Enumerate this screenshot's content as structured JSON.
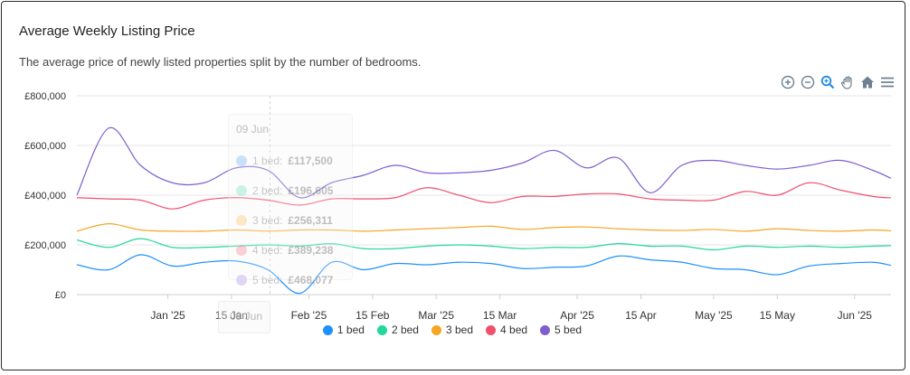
{
  "header": {
    "title": "Average Weekly Listing Price",
    "subtitle": "The average price of newly listed properties split by the number of bedrooms."
  },
  "toolbar": {
    "icons": [
      "zoom-in-icon",
      "zoom-out-icon",
      "selection-zoom-icon",
      "pan-hand-icon",
      "home-reset-icon",
      "menu-icon"
    ]
  },
  "tooltip": {
    "title": "09 Jun",
    "rows": [
      {
        "label": "1 bed:",
        "value": "£117,500",
        "color": "#1e90ff"
      },
      {
        "label": "2 bed:",
        "value": "£196,605",
        "color": "#22d89a"
      },
      {
        "label": "3 bed:",
        "value": "£256,311",
        "color": "#f5a623"
      },
      {
        "label": "4 bed:",
        "value": "£389,238",
        "color": "#f0506e"
      },
      {
        "label": "5 bed:",
        "value": "£468,077",
        "color": "#7e5fd0"
      }
    ],
    "x_label": "09 Jun"
  },
  "chart_data": {
    "type": "line",
    "title": "Average Weekly Listing Price",
    "ylim": [
      0,
      800000
    ],
    "yticks": [
      "£0",
      "£200,000",
      "£400,000",
      "£600,000",
      "£800,000"
    ],
    "ytick_values": [
      0,
      200000,
      400000,
      600000,
      800000
    ],
    "xticks": [
      "Jan '25",
      "15 Jan",
      "Feb '25",
      "15 Feb",
      "Mar '25",
      "15 Mar",
      "Apr '25",
      "15 Apr",
      "May '25",
      "15 May",
      "Jun '25"
    ],
    "xtick_dates": [
      "2025-01-01",
      "2025-01-15",
      "2025-02-01",
      "2025-02-15",
      "2025-03-01",
      "2025-03-15",
      "2025-04-01",
      "2025-04-15",
      "2025-05-01",
      "2025-05-15",
      "2025-06-01"
    ],
    "x": [
      "2024-12-12",
      "2024-12-19",
      "2024-12-26",
      "2025-01-02",
      "2025-01-09",
      "2025-01-16",
      "2025-01-23",
      "2025-01-30",
      "2025-02-06",
      "2025-02-13",
      "2025-02-20",
      "2025-02-27",
      "2025-03-06",
      "2025-03-13",
      "2025-03-20",
      "2025-03-27",
      "2025-04-03",
      "2025-04-10",
      "2025-04-17",
      "2025-04-24",
      "2025-05-01",
      "2025-05-08",
      "2025-05-15",
      "2025-05-22",
      "2025-05-29",
      "2025-06-05",
      "2025-06-09"
    ],
    "series": [
      {
        "name": "1 bed",
        "color": "#1e90ff",
        "values": [
          120000,
          100000,
          160000,
          115000,
          130000,
          135000,
          100000,
          5000,
          130000,
          100000,
          125000,
          120000,
          130000,
          125000,
          105000,
          110000,
          115000,
          155000,
          140000,
          130000,
          105000,
          100000,
          80000,
          115000,
          125000,
          130000,
          117500
        ]
      },
      {
        "name": "2 bed",
        "color": "#22d89a",
        "values": [
          220000,
          190000,
          225000,
          190000,
          190000,
          195000,
          200000,
          195000,
          205000,
          185000,
          185000,
          195000,
          200000,
          195000,
          185000,
          190000,
          190000,
          205000,
          195000,
          195000,
          180000,
          195000,
          190000,
          195000,
          190000,
          195000,
          196605
        ]
      },
      {
        "name": "3 bed",
        "color": "#f5a623",
        "values": [
          255000,
          285000,
          260000,
          255000,
          255000,
          260000,
          255000,
          260000,
          260000,
          255000,
          260000,
          265000,
          270000,
          275000,
          262000,
          270000,
          272000,
          265000,
          260000,
          258000,
          262000,
          255000,
          265000,
          258000,
          255000,
          260000,
          256311
        ]
      },
      {
        "name": "4 bed",
        "color": "#f0506e",
        "values": [
          390000,
          385000,
          380000,
          345000,
          380000,
          390000,
          380000,
          360000,
          385000,
          385000,
          390000,
          430000,
          400000,
          370000,
          395000,
          395000,
          405000,
          405000,
          385000,
          380000,
          380000,
          415000,
          400000,
          450000,
          420000,
          395000,
          389238
        ]
      },
      {
        "name": "5 bed",
        "color": "#7e5fd0",
        "values": [
          400000,
          670000,
          520000,
          450000,
          450000,
          510000,
          500000,
          390000,
          450000,
          480000,
          520000,
          490000,
          490000,
          500000,
          530000,
          580000,
          510000,
          550000,
          410000,
          520000,
          540000,
          520000,
          505000,
          520000,
          540000,
          500000,
          468077
        ]
      }
    ],
    "legend_position": "bottom"
  }
}
